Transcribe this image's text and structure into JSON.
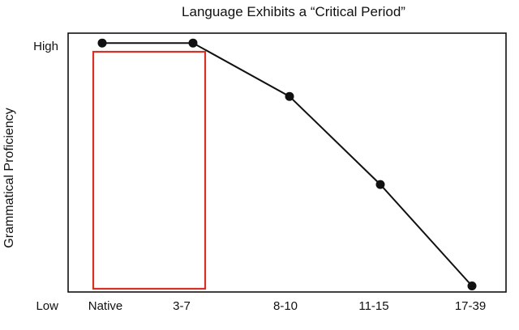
{
  "chart_data": {
    "type": "line",
    "title": "Language Exhibits a “Critical Period”",
    "xlabel": "",
    "ylabel": "Grammatical Proficiency",
    "categories": [
      "Native",
      "3-7",
      "8-10",
      "11-15",
      "17-39"
    ],
    "y_tick_labels": {
      "high": "High",
      "low": "Low"
    },
    "ylim": [
      0,
      100
    ],
    "series": [
      {
        "values": [
          96,
          96,
          76,
          43,
          5
        ]
      }
    ],
    "highlight": {
      "from": "Native",
      "to": "3-7",
      "color": "#d93025"
    },
    "line_color": "#111111",
    "grid": false,
    "legend": "none"
  }
}
